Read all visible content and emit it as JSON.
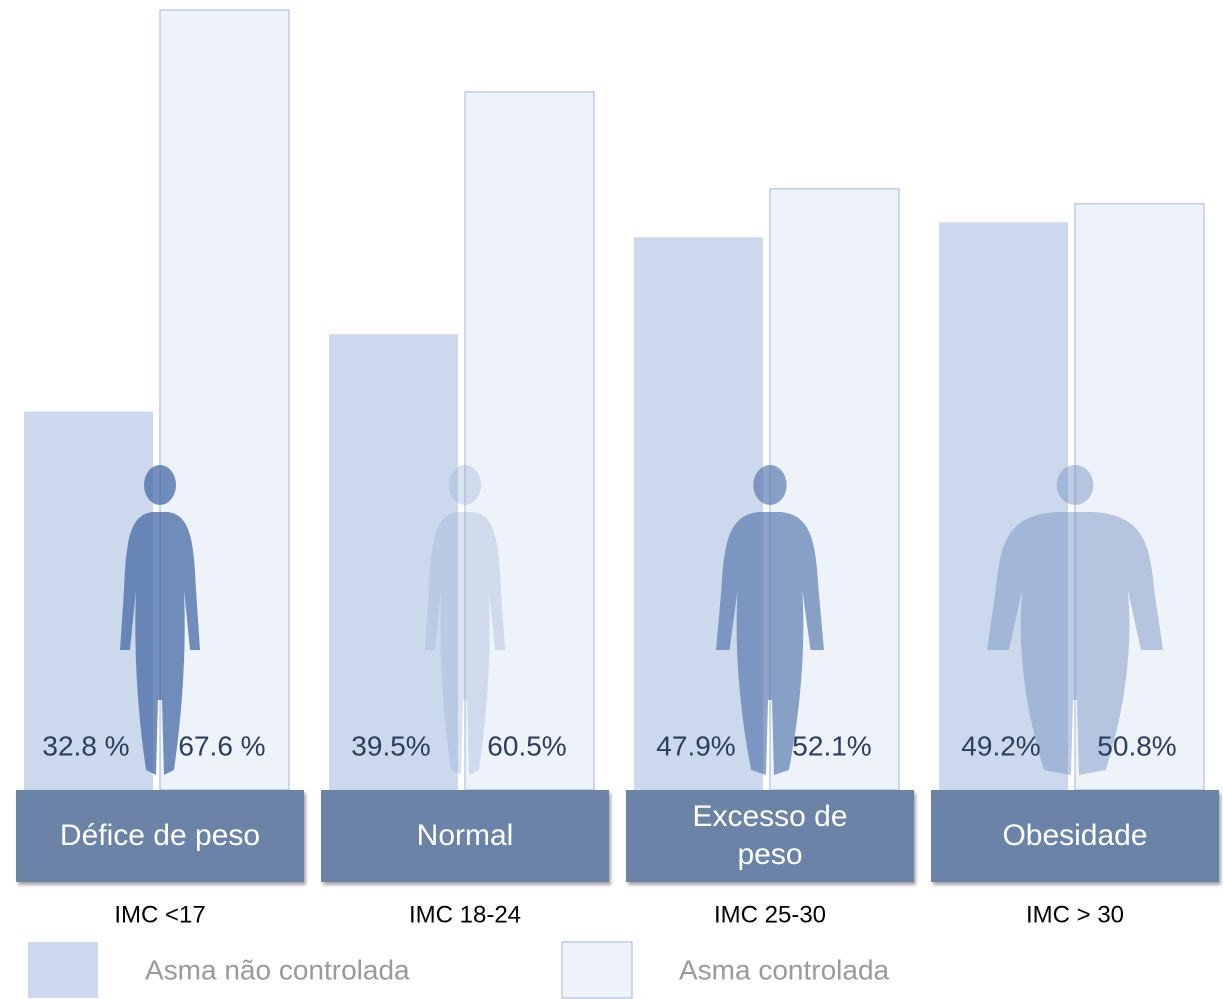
{
  "chart_data": {
    "type": "bar",
    "categories": [
      "Défice de peso",
      "Normal",
      "Excesso de peso",
      "Obesidade"
    ],
    "sublabels": [
      "IMC <17",
      "IMC 18-24",
      "IMC 25-30",
      "IMC > 30"
    ],
    "series": [
      {
        "name": "Asma não controlada",
        "color": "#ccd9ec",
        "values": [
          32.8,
          39.5,
          47.9,
          49.2
        ],
        "value_labels": [
          "32.8 %",
          "39.5%",
          "47.9%",
          "49.2%"
        ]
      },
      {
        "name": "Asma controlada",
        "color": "#eef3f9",
        "values": [
          67.6,
          60.5,
          52.1,
          50.8
        ],
        "value_labels": [
          "67.6 %",
          "60.5%",
          "52.1%",
          "50.8%"
        ]
      }
    ]
  }
}
